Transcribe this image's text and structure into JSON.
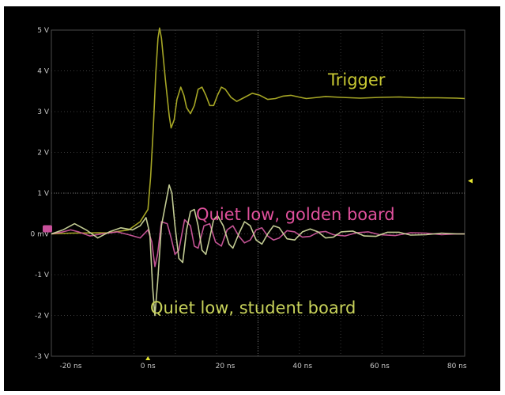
{
  "chart_data": {
    "type": "line",
    "title": "",
    "xlabel": "",
    "ylabel": "",
    "xlim": [
      -25,
      82
    ],
    "ylim": [
      -3,
      5
    ],
    "grid": true,
    "x_ticks": [
      {
        "value": -20,
        "label": "-20 ns"
      },
      {
        "value": 0,
        "label": "0 ns"
      },
      {
        "value": 20,
        "label": "20 ns"
      },
      {
        "value": 40,
        "label": "40 ns"
      },
      {
        "value": 60,
        "label": "60 ns"
      },
      {
        "value": 80,
        "label": "80 ns"
      }
    ],
    "y_ticks": [
      {
        "value": 5,
        "label": "5 V"
      },
      {
        "value": 4,
        "label": "4 V"
      },
      {
        "value": 3,
        "label": "3 V"
      },
      {
        "value": 2,
        "label": "2 V"
      },
      {
        "value": 1,
        "label": "1 V"
      },
      {
        "value": 0,
        "label": "0 mV"
      },
      {
        "value": -1,
        "label": "-1 V"
      },
      {
        "value": -2,
        "label": "-2 V"
      },
      {
        "value": -3,
        "label": "-3 V"
      }
    ],
    "annotations": [
      {
        "text": "Trigger",
        "color": "#c8c832"
      },
      {
        "text": "Quiet low, golden board",
        "color": "#e0509c"
      },
      {
        "text": "Quiet low, student board",
        "color": "#c8d25a"
      }
    ],
    "series": [
      {
        "color": "#b4b428",
        "points": [
          [
            -25,
            0
          ],
          [
            -20,
            0.02
          ],
          [
            -10,
            0.03
          ],
          [
            -5,
            0.1
          ],
          [
            -2,
            0.3
          ],
          [
            0,
            0.6
          ],
          [
            0.7,
            1.4
          ],
          [
            1.4,
            2.6
          ],
          [
            2,
            3.9
          ],
          [
            2.6,
            4.8
          ],
          [
            3,
            5.05
          ],
          [
            3.5,
            4.8
          ],
          [
            4.5,
            3.8
          ],
          [
            5.5,
            2.9
          ],
          [
            6,
            2.6
          ],
          [
            6.8,
            2.8
          ],
          [
            7.5,
            3.3
          ],
          [
            8.5,
            3.6
          ],
          [
            9.3,
            3.4
          ],
          [
            10,
            3.1
          ],
          [
            11,
            2.95
          ],
          [
            12,
            3.15
          ],
          [
            13,
            3.55
          ],
          [
            14,
            3.6
          ],
          [
            15,
            3.4
          ],
          [
            16,
            3.15
          ],
          [
            17,
            3.15
          ],
          [
            18,
            3.4
          ],
          [
            19,
            3.6
          ],
          [
            20,
            3.55
          ],
          [
            21.5,
            3.35
          ],
          [
            23,
            3.25
          ],
          [
            25,
            3.35
          ],
          [
            27,
            3.45
          ],
          [
            29,
            3.4
          ],
          [
            31,
            3.3
          ],
          [
            33,
            3.32
          ],
          [
            35,
            3.38
          ],
          [
            37,
            3.4
          ],
          [
            39,
            3.36
          ],
          [
            41,
            3.32
          ],
          [
            43,
            3.34
          ],
          [
            46,
            3.37
          ],
          [
            50,
            3.35
          ],
          [
            55,
            3.33
          ],
          [
            60,
            3.35
          ],
          [
            65,
            3.36
          ],
          [
            70,
            3.34
          ],
          [
            75,
            3.34
          ],
          [
            80,
            3.33
          ],
          [
            82,
            3.32
          ]
        ]
      },
      {
        "color": "#d25aa0",
        "points": [
          [
            -25,
            0
          ],
          [
            -22,
            0.05
          ],
          [
            -20,
            0.1
          ],
          [
            -18,
            0.05
          ],
          [
            -15,
            -0.05
          ],
          [
            -12,
            0
          ],
          [
            -8,
            0.05
          ],
          [
            -5,
            -0.02
          ],
          [
            -2,
            -0.1
          ],
          [
            0,
            0.1
          ],
          [
            1,
            -0.2
          ],
          [
            1.8,
            -0.8
          ],
          [
            2.5,
            -0.5
          ],
          [
            3.5,
            0.3
          ],
          [
            5,
            0.25
          ],
          [
            6,
            -0.1
          ],
          [
            7,
            -0.5
          ],
          [
            8,
            -0.4
          ],
          [
            9.5,
            0.35
          ],
          [
            11,
            0.2
          ],
          [
            12,
            -0.3
          ],
          [
            13,
            -0.35
          ],
          [
            14.5,
            0.2
          ],
          [
            16,
            0.25
          ],
          [
            17.5,
            -0.2
          ],
          [
            19,
            -0.3
          ],
          [
            20.5,
            0.1
          ],
          [
            22,
            0.2
          ],
          [
            23.5,
            -0.05
          ],
          [
            25,
            -0.22
          ],
          [
            26.5,
            -0.15
          ],
          [
            28,
            0.1
          ],
          [
            29.5,
            0.15
          ],
          [
            31,
            -0.05
          ],
          [
            32.5,
            -0.15
          ],
          [
            34,
            -0.1
          ],
          [
            36,
            0.08
          ],
          [
            38,
            0.05
          ],
          [
            40,
            -0.08
          ],
          [
            42,
            -0.06
          ],
          [
            44,
            0.04
          ],
          [
            46,
            0.06
          ],
          [
            48,
            -0.02
          ],
          [
            51,
            -0.05
          ],
          [
            54,
            0.03
          ],
          [
            57,
            0.05
          ],
          [
            60,
            -0.02
          ],
          [
            64,
            -0.04
          ],
          [
            68,
            0.03
          ],
          [
            72,
            0.02
          ],
          [
            76,
            -0.02
          ],
          [
            80,
            0
          ],
          [
            82,
            0
          ]
        ]
      },
      {
        "color": "#d2dca0",
        "points": [
          [
            -25,
            0
          ],
          [
            -22,
            0.1
          ],
          [
            -19,
            0.25
          ],
          [
            -16,
            0.1
          ],
          [
            -13,
            -0.1
          ],
          [
            -10,
            0.05
          ],
          [
            -7,
            0.15
          ],
          [
            -4,
            0.1
          ],
          [
            -2,
            0.2
          ],
          [
            -0.5,
            0.4
          ],
          [
            0.5,
            0
          ],
          [
            1.2,
            -1.3
          ],
          [
            1.8,
            -2
          ],
          [
            2.5,
            -1.2
          ],
          [
            3.5,
            0.2
          ],
          [
            4.5,
            0.7
          ],
          [
            5.5,
            1.2
          ],
          [
            6.2,
            1.0
          ],
          [
            7,
            0.2
          ],
          [
            8,
            -0.6
          ],
          [
            9,
            -0.7
          ],
          [
            10,
            0.1
          ],
          [
            11,
            0.55
          ],
          [
            12,
            0.6
          ],
          [
            13,
            0.2
          ],
          [
            14,
            -0.4
          ],
          [
            15,
            -0.5
          ],
          [
            16,
            -0.1
          ],
          [
            17,
            0.35
          ],
          [
            18,
            0.45
          ],
          [
            19.5,
            0.2
          ],
          [
            21,
            -0.25
          ],
          [
            22,
            -0.35
          ],
          [
            23.5,
            0
          ],
          [
            25,
            0.3
          ],
          [
            26.5,
            0.2
          ],
          [
            28,
            -0.15
          ],
          [
            29.5,
            -0.25
          ],
          [
            31,
            0
          ],
          [
            32.5,
            0.2
          ],
          [
            34,
            0.15
          ],
          [
            36,
            -0.12
          ],
          [
            38,
            -0.15
          ],
          [
            40,
            0.05
          ],
          [
            42,
            0.12
          ],
          [
            44,
            0.05
          ],
          [
            46,
            -0.1
          ],
          [
            48,
            -0.08
          ],
          [
            50,
            0.05
          ],
          [
            53,
            0.07
          ],
          [
            56,
            -0.05
          ],
          [
            59,
            -0.06
          ],
          [
            62,
            0.04
          ],
          [
            65,
            0.04
          ],
          [
            68,
            -0.03
          ],
          [
            72,
            -0.02
          ],
          [
            76,
            0.02
          ],
          [
            80,
            0
          ],
          [
            82,
            0
          ]
        ]
      }
    ]
  }
}
